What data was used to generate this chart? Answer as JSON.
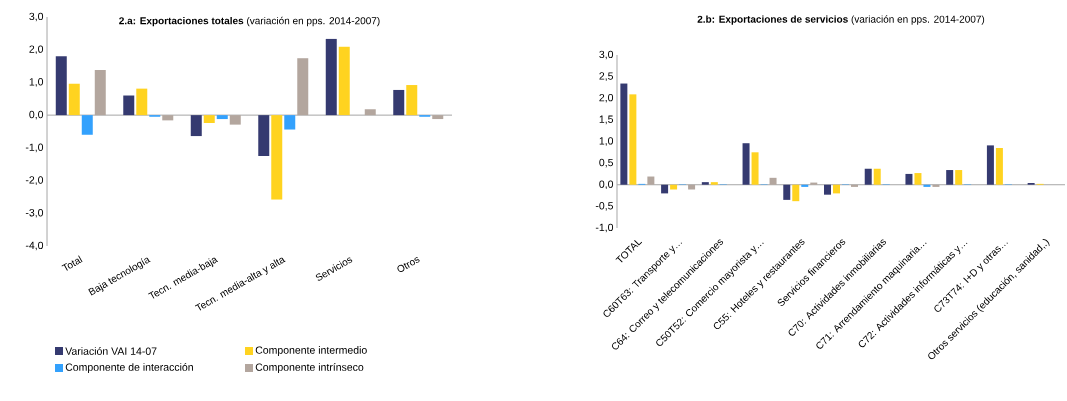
{
  "chart_data": [
    {
      "type": "bar",
      "title": "**2.a: Exportaciones totales** (variación en pps. 2014-2007)",
      "categories": [
        "Total",
        "Baja tecnología",
        "Tecn. media-baja",
        "Tecn. media-alta y alta",
        "Servicios",
        "Otros"
      ],
      "series": [
        {
          "name": "Variación VAI 14-07",
          "color": "#353a70",
          "values": [
            1.8,
            0.6,
            -0.64,
            -1.25,
            2.33,
            0.77
          ]
        },
        {
          "name": "Componente intermedio",
          "color": "#ffd320",
          "values": [
            0.96,
            0.81,
            -0.24,
            -2.58,
            2.09,
            0.92
          ]
        },
        {
          "name": "Componente de interacción",
          "color": "#33a1fd",
          "values": [
            -0.6,
            -0.05,
            -0.12,
            -0.44,
            null,
            -0.05
          ]
        },
        {
          "name": "Componente intrínseco",
          "color": "#b3a69e",
          "values": [
            1.38,
            -0.16,
            -0.29,
            1.74,
            0.18,
            -0.12
          ]
        }
      ],
      "ylim": [
        -4,
        3
      ],
      "yticks": [
        {
          "value": -4,
          "label": "-4,0"
        },
        {
          "value": -3,
          "label": "-3,0"
        },
        {
          "value": -2,
          "label": "-2,0"
        },
        {
          "value": -1,
          "label": "-1,0"
        },
        {
          "value": 0,
          "label": "0,0"
        },
        {
          "value": 1,
          "label": "1,0"
        },
        {
          "value": 2,
          "label": "2,0"
        },
        {
          "value": 3,
          "label": "3,0"
        }
      ],
      "legend": "bottom"
    },
    {
      "type": "bar",
      "title": "**2.b: Exportaciones de servicios** (variación en pps. 2014-2007)",
      "categories": [
        "TOTAL",
        "C60T63: Transporte y…",
        "C64: Correo y telecomunicaciones",
        "C50T52: Comercio mayorista y…",
        "C55: Hoteles y restaurantes",
        "Servicios financieros",
        "C70: Actividades inmobiliarias",
        "C71: Arrendamiento maquinaria…",
        "C72: Actividades informáticas y…",
        "C73T74: I+D y otras…",
        "Otros servicios (educación, sanidad,.)"
      ],
      "series": [
        {
          "color": "#353a70",
          "values": [
            2.34,
            -0.2,
            0.06,
            0.96,
            -0.35,
            -0.23,
            0.37,
            0.25,
            0.34,
            0.91,
            0.04
          ]
        },
        {
          "color": "#ffd320",
          "values": [
            2.09,
            -0.11,
            0.06,
            0.75,
            -0.38,
            -0.2,
            0.37,
            0.27,
            0.34,
            0.85,
            0.02
          ]
        },
        {
          "color": "#33a1fd",
          "values": [
            0.02,
            0.01,
            0.01,
            0.01,
            -0.05,
            0.01,
            0.01,
            -0.05,
            0.01,
            0.01,
            0
          ]
        },
        {
          "color": "#b3a69e",
          "values": [
            0.19,
            -0.11,
            0,
            0.16,
            0.05,
            -0.05,
            0,
            -0.05,
            0,
            0,
            0
          ]
        }
      ],
      "ylim": [
        -1,
        3
      ],
      "yticks": [
        {
          "value": -1,
          "label": "-1,0"
        },
        {
          "value": -0.5,
          "label": "-0,5"
        },
        {
          "value": 0,
          "label": "0,0"
        },
        {
          "value": 0.5,
          "label": "0,5"
        },
        {
          "value": 1,
          "label": "1,0"
        },
        {
          "value": 1.5,
          "label": "1,5"
        },
        {
          "value": 2,
          "label": "2,0"
        },
        {
          "value": 2.5,
          "label": "2,5"
        },
        {
          "value": 3,
          "label": "3,0"
        }
      ]
    }
  ]
}
